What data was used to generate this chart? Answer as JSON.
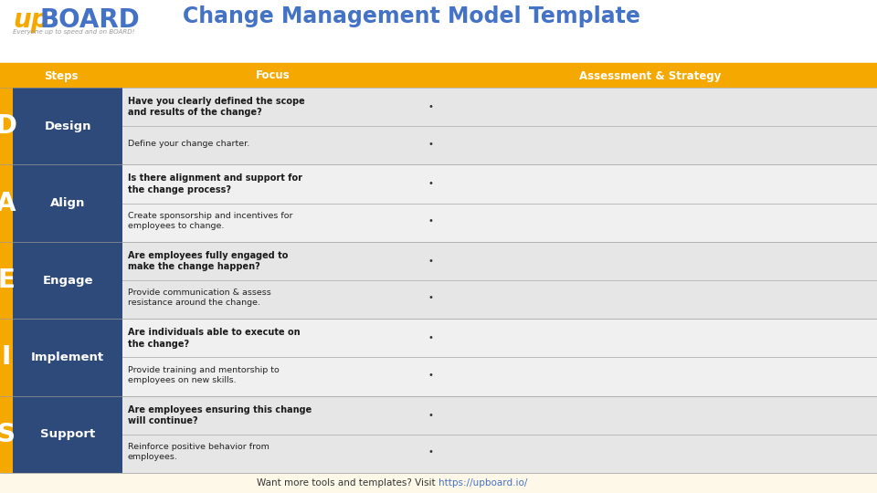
{
  "title": "Change Management Model Template",
  "title_color": "#4472c4",
  "header_bg": "#f5a800",
  "header_text_color": "#ffffff",
  "header_labels": [
    "Steps",
    "Focus",
    "Assessment & Strategy"
  ],
  "step_bg_color": "#2e4a7a",
  "step_text_color": "#ffffff",
  "row_bg_odd": "#e6e6e6",
  "row_bg_even": "#f0f0f0",
  "left_col_color": "#f5a800",
  "steps": [
    {
      "letter": "D",
      "name": "Design",
      "focus1_bold": "Have you clearly defined the scope\nand results of the change?",
      "focus2": "Define your change charter."
    },
    {
      "letter": "A",
      "name": "Align",
      "focus1_bold": "Is there alignment and support for\nthe change process?",
      "focus2": "Create sponsorship and incentives for\nemployees to change."
    },
    {
      "letter": "E",
      "name": "Engage",
      "focus1_bold": "Are employees fully engaged to\nmake the change happen?",
      "focus2": "Provide communication & assess\nresistance around the change."
    },
    {
      "letter": "I",
      "name": "Implement",
      "focus1_bold": "Are individuals able to execute on\nthe change?",
      "focus2": "Provide training and mentorship to\nemployees on new skills."
    },
    {
      "letter": "S",
      "name": "Support",
      "focus1_bold": "Are employees ensuring this change\nwill continue?",
      "focus2": "Reinforce positive behavior from\nemployees."
    }
  ],
  "footer_text": "Want more tools and templates? Visit ",
  "footer_link": "https://upboard.io/",
  "footer_bg": "#fdf8e8",
  "logo_up_color": "#f5a800",
  "logo_board_color": "#4472c4",
  "logo_sub_color": "#999999"
}
